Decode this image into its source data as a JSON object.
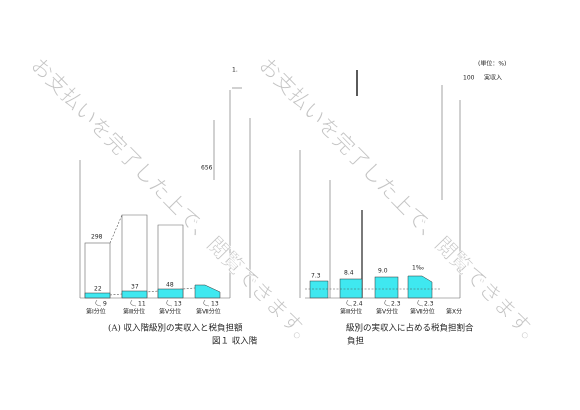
{
  "left_chart": {
    "top_labels": [
      "1.",
      "656"
    ],
    "totals": [
      "298"
    ],
    "tax_values": [
      "22",
      "37",
      "48"
    ],
    "arrow_values": [
      "9",
      "11",
      "13",
      "13"
    ],
    "categories": [
      "第Ⅰ分位",
      "第Ⅲ分位",
      "第Ⅴ分位",
      "第Ⅶ分位"
    ],
    "caption": "(A) 収入階級別の実収入と税負担額"
  },
  "figure_title": "図１ 収入階",
  "right_chart": {
    "unit": "(単位：%)",
    "legend_value": "100",
    "legend_label": "実収入",
    "ratio_values": [
      "7.3",
      "8.4",
      "9.0",
      "1‰"
    ],
    "arrow_values": [
      "2.4",
      "2.3",
      "2.3"
    ],
    "categories": [
      "第Ⅲ分位",
      "第Ⅴ分位",
      "第Ⅶ分位",
      "第Ⅹ分"
    ],
    "caption": "級別の実収入に占める税負担割合",
    "caption2": "負担"
  },
  "watermark": "お支払いを完了した上で、閲覧できます。"
}
